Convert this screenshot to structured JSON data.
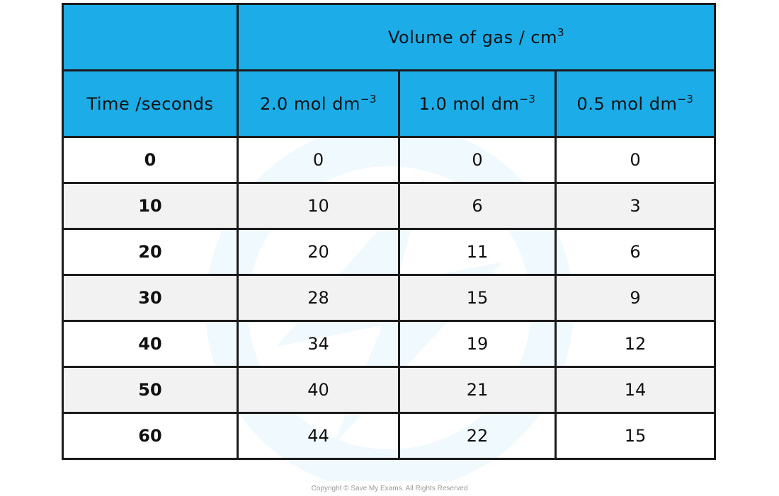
{
  "table": {
    "group_header": "Volume of gas / cm",
    "group_header_sup": "3",
    "time_header": "Time /seconds",
    "concentration_columns": [
      {
        "value": "2.0 mol dm",
        "sup": "−3"
      },
      {
        "value": "1.0 mol dm",
        "sup": "−3"
      },
      {
        "value": "0.5 mol dm",
        "sup": "−3"
      }
    ],
    "rows": [
      {
        "time": "0",
        "v1": "0",
        "v2": "0",
        "v3": "0"
      },
      {
        "time": "10",
        "v1": "10",
        "v2": "6",
        "v3": "3"
      },
      {
        "time": "20",
        "v1": "20",
        "v2": "11",
        "v3": "6"
      },
      {
        "time": "30",
        "v1": "28",
        "v2": "15",
        "v3": "9"
      },
      {
        "time": "40",
        "v1": "34",
        "v2": "19",
        "v3": "12"
      },
      {
        "time": "50",
        "v1": "40",
        "v2": "21",
        "v3": "14"
      },
      {
        "time": "60",
        "v1": "44",
        "v2": "22",
        "v3": "15"
      }
    ]
  },
  "copyright": "Copyright © Save My Exams. All Rights Reserved",
  "colors": {
    "header_bg": "#1cace8",
    "header_text": "#ffffff",
    "border": "#1b1b1b",
    "alt_row": "#f2f2f2"
  }
}
